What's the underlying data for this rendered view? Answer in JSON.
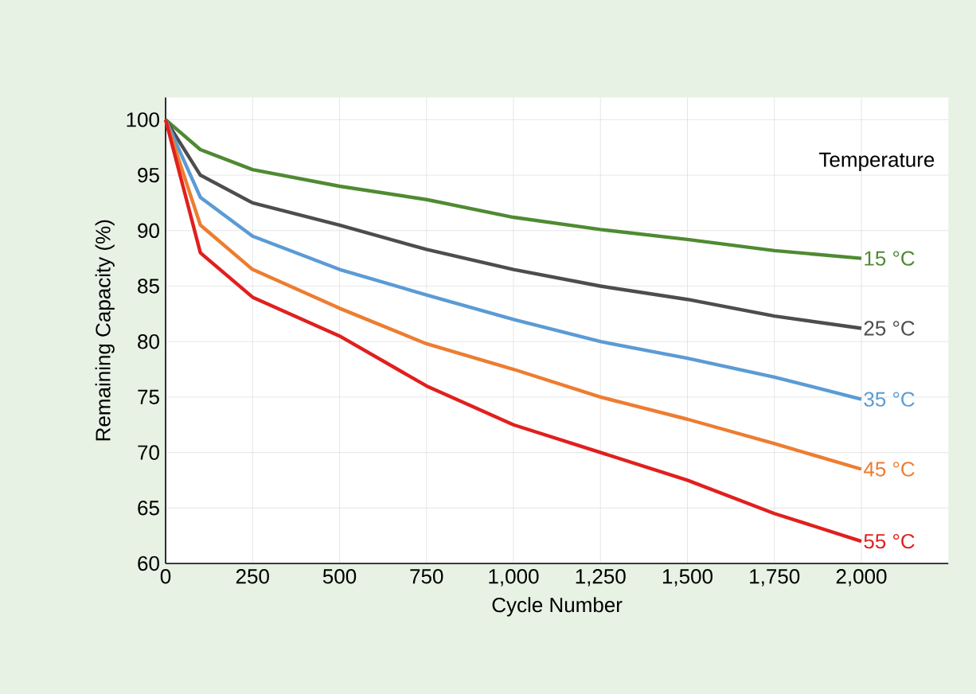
{
  "chart_data": {
    "type": "line",
    "xlabel": "Cycle Number",
    "ylabel": "Remaining Capacity (%)",
    "legend_title": "Temperature",
    "grid": true,
    "legend": false,
    "x": [
      0,
      100,
      250,
      500,
      750,
      1000,
      1250,
      1500,
      1750,
      2000
    ],
    "xlim": [
      0,
      2250
    ],
    "ylim": [
      60,
      102
    ],
    "xticks": [
      0,
      250,
      500,
      750,
      {
        "value": 1000,
        "label": "1,000"
      },
      {
        "value": 1250,
        "label": "1,250"
      },
      {
        "value": 1500,
        "label": "1,500"
      },
      {
        "value": 1750,
        "label": "1,750"
      },
      {
        "value": 2000,
        "label": "2,000"
      }
    ],
    "yticks": [
      60,
      65,
      70,
      75,
      80,
      85,
      90,
      95,
      100
    ],
    "series": [
      {
        "name": "15 °C",
        "color": "#4f8a32",
        "values": [
          100,
          97.3,
          95.5,
          94,
          92.8,
          91.2,
          90.1,
          89.2,
          88.2,
          87.5
        ]
      },
      {
        "name": "25 °C",
        "color": "#4d4d4d",
        "values": [
          100,
          95,
          92.5,
          90.5,
          88.3,
          86.5,
          85,
          83.8,
          82.3,
          81.2
        ]
      },
      {
        "name": "35 °C",
        "color": "#5b9bd5",
        "values": [
          100,
          93,
          89.5,
          86.5,
          84.2,
          82,
          80,
          78.5,
          76.8,
          74.8
        ]
      },
      {
        "name": "45 °C",
        "color": "#ed7d31",
        "values": [
          100,
          90.5,
          86.5,
          83,
          79.8,
          77.5,
          75,
          73,
          70.8,
          68.5
        ]
      },
      {
        "name": "55 °C",
        "color": "#e0201e",
        "values": [
          100,
          88,
          84,
          80.5,
          76,
          72.5,
          70,
          67.5,
          64.5,
          62
        ]
      }
    ]
  }
}
